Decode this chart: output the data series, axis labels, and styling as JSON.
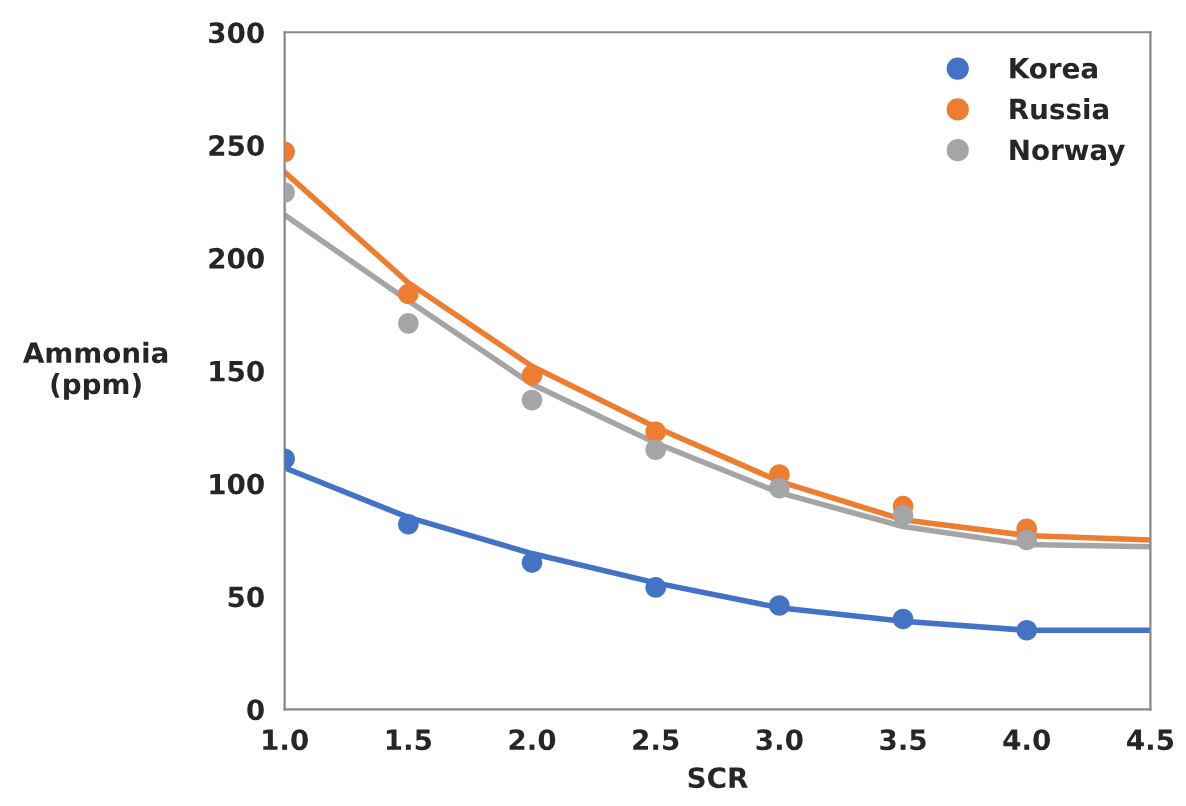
{
  "chart_data": {
    "type": "scatter",
    "xlabel": "SCR",
    "ylabel": "Ammonia\n(ppm)",
    "x": [
      1.0,
      1.5,
      2.0,
      2.5,
      3.0,
      3.5,
      4.0
    ],
    "series": [
      {
        "name": "Korea",
        "color": "#4472c4",
        "values": [
          111,
          82,
          65,
          54,
          46,
          40,
          35
        ]
      },
      {
        "name": "Russia",
        "color": "#ed7d31",
        "values": [
          247,
          184,
          148,
          123,
          104,
          90,
          80
        ]
      },
      {
        "name": "Norway",
        "color": "#a5a5a5",
        "values": [
          229,
          171,
          137,
          115,
          98,
          86,
          75
        ]
      },
      {
        "type": "line",
        "marker": "none",
        "color": "#4472c4",
        "x": [
          1.0,
          1.5,
          2.0,
          2.5,
          3.0,
          3.5,
          4.0,
          4.5
        ],
        "values": [
          107,
          85,
          69,
          56,
          45,
          39,
          35,
          35
        ]
      },
      {
        "type": "line",
        "marker": "none",
        "color": "#ed7d31",
        "x": [
          1.0,
          1.5,
          2.0,
          2.5,
          3.0,
          3.5,
          4.0,
          4.5
        ],
        "values": [
          238,
          189,
          152,
          125,
          101,
          84,
          77,
          75
        ]
      },
      {
        "type": "line",
        "marker": "none",
        "color": "#a5a5a5",
        "x": [
          1.0,
          1.5,
          2.0,
          2.5,
          3.0,
          3.5,
          4.0,
          4.5
        ],
        "values": [
          219,
          181,
          144,
          118,
          96,
          81,
          73,
          72
        ]
      }
    ],
    "xlim": [
      1.0,
      4.5
    ],
    "ylim": [
      0,
      300
    ],
    "xticks": [
      {
        "value": 1.0,
        "label": "1.0"
      },
      {
        "value": 1.5,
        "label": "1.5"
      },
      {
        "value": 2.0,
        "label": "2.0"
      },
      {
        "value": 2.5,
        "label": "2.5"
      },
      {
        "value": 3.0,
        "label": "3.0"
      },
      {
        "value": 3.5,
        "label": "3.5"
      },
      {
        "value": 4.0,
        "label": "4.0"
      },
      {
        "value": 4.5,
        "label": "4.5"
      }
    ],
    "yticks": [
      0,
      50,
      100,
      150,
      200,
      250,
      300
    ],
    "marker": "circle",
    "grid": false,
    "legend": "top right"
  }
}
